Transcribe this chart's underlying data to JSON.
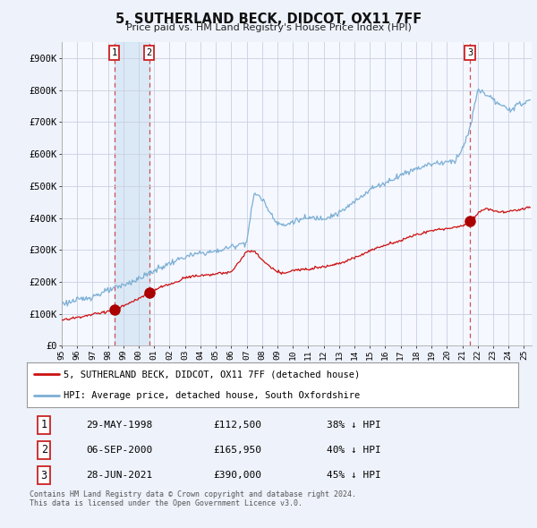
{
  "title": "5, SUTHERLAND BECK, DIDCOT, OX11 7FF",
  "subtitle": "Price paid vs. HM Land Registry's House Price Index (HPI)",
  "ylim": [
    0,
    950000
  ],
  "yticks": [
    0,
    100000,
    200000,
    300000,
    400000,
    500000,
    600000,
    700000,
    800000,
    900000
  ],
  "xlim_start": 1995.0,
  "xlim_end": 2025.5,
  "sale_dates": [
    1998.41,
    2000.67,
    2021.49
  ],
  "sale_prices": [
    112500,
    165950,
    390000
  ],
  "sale_labels": [
    "1",
    "2",
    "3"
  ],
  "hpi_color": "#7bafd4",
  "price_color": "#cc1111",
  "marker_color": "#aa0000",
  "vline_color": "#cc3333",
  "shade_color": "#d0e4f5",
  "legend_label_price": "5, SUTHERLAND BECK, DIDCOT, OX11 7FF (detached house)",
  "legend_label_hpi": "HPI: Average price, detached house, South Oxfordshire",
  "table_rows": [
    [
      "1",
      "29-MAY-1998",
      "£112,500",
      "38% ↓ HPI"
    ],
    [
      "2",
      "06-SEP-2000",
      "£165,950",
      "40% ↓ HPI"
    ],
    [
      "3",
      "28-JUN-2021",
      "£390,000",
      "45% ↓ HPI"
    ]
  ],
  "footnote": "Contains HM Land Registry data © Crown copyright and database right 2024.\nThis data is licensed under the Open Government Licence v3.0.",
  "background_color": "#eef2fb",
  "plot_bg_color": "#f5f8ff"
}
